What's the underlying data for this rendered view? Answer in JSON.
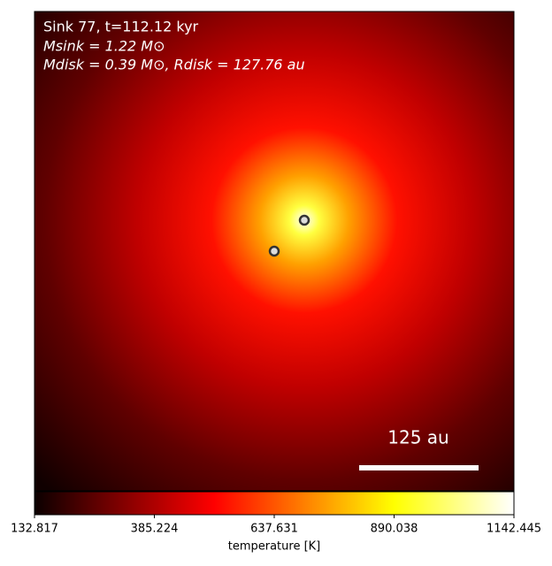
{
  "chart_data": {
    "type": "image",
    "annotations": [
      "Sink 77, t=112.12 kyr",
      "Msink = 1.22 M⊙",
      "Mdisk = 0.39 M⊙, Rdisk = 127.76 au"
    ],
    "scale_bar_label": "125 au",
    "colormap": "hot",
    "colorbar": {
      "label": "temperature [K]",
      "lim": [
        132.817,
        1142.445
      ],
      "ticks": [
        132.817,
        385.224,
        637.631,
        890.038,
        1142.445
      ]
    }
  }
}
